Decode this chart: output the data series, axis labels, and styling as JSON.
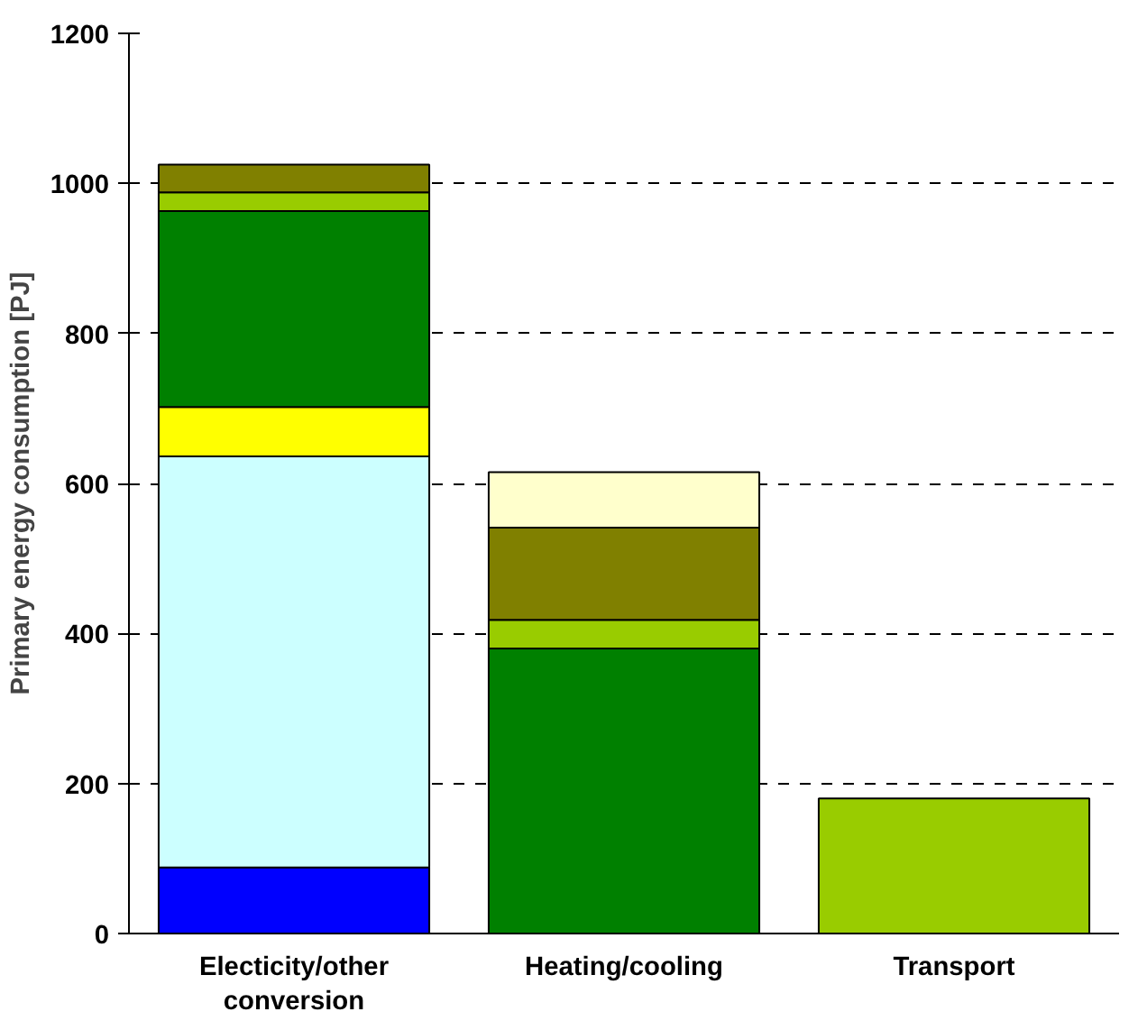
{
  "chart_data": {
    "type": "bar",
    "stacked": true,
    "ylabel": "Primary energy consumption [PJ]",
    "categories": [
      "Electicity/other conversion",
      "Heating/cooling",
      "Transport"
    ],
    "series": [
      {
        "color": "#0000ff",
        "values": [
          88,
          null,
          null
        ]
      },
      {
        "color": "#ccffff",
        "values": [
          548,
          null,
          null
        ]
      },
      {
        "color": "#ffff00",
        "values": [
          66,
          null,
          null
        ]
      },
      {
        "color": "#008000",
        "values": [
          261,
          380,
          null
        ]
      },
      {
        "color": "#99cc00",
        "values": [
          25,
          38,
          180
        ]
      },
      {
        "color": "#808000",
        "values": [
          37,
          123,
          null
        ]
      },
      {
        "color": "#ffffcc",
        "values": [
          null,
          74,
          null
        ]
      }
    ],
    "ylim": [
      0,
      1200
    ],
    "yticks": [
      0,
      200,
      400,
      600,
      800,
      1000,
      1200
    ],
    "grid": "y"
  }
}
